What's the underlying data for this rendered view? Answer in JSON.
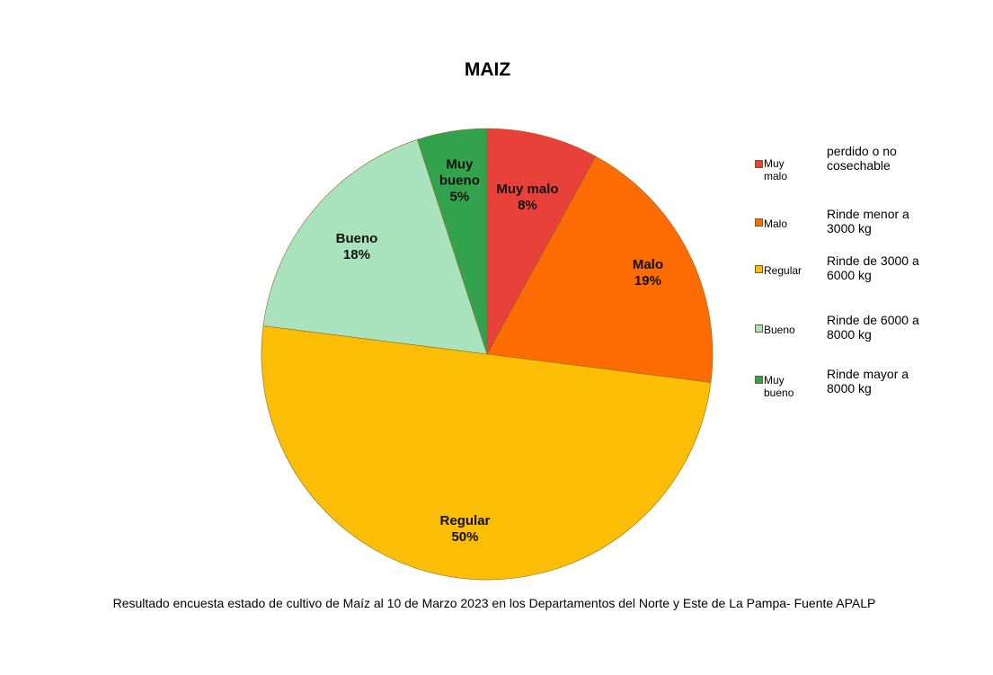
{
  "chart_data": {
    "type": "pie",
    "title": "MAIZ",
    "slices": [
      {
        "label": "Muy malo",
        "value": 8,
        "value_label": "8%",
        "color": "#e8413a"
      },
      {
        "label": "Malo",
        "value": 19,
        "value_label": "19%",
        "color": "#fd6b03"
      },
      {
        "label": "Regular",
        "value": 50,
        "value_label": "50%",
        "color": "#fbbe04"
      },
      {
        "label": "Bueno",
        "value": 18,
        "value_label": "18%",
        "color": "#a9e3be"
      },
      {
        "label": "Muy bueno",
        "value": 5,
        "value_label": "5%",
        "color": "#33a24d"
      }
    ],
    "legend": {
      "placement": "right",
      "items": [
        {
          "name": "Muy malo",
          "description": "perdido o no cosechable",
          "color": "#e8413a"
        },
        {
          "name": "Malo",
          "description": "Rinde menor a 3000 kg",
          "color": "#fd6b03"
        },
        {
          "name": "Regular",
          "description": "Rinde de 3000 a 6000 kg",
          "color": "#fbbe04"
        },
        {
          "name": "Bueno",
          "description": "Rinde de 6000 a 8000 kg",
          "color": "#a9e3be"
        },
        {
          "name": "Muy bueno",
          "description": "Rinde mayor a 8000 kg",
          "color": "#33a24d"
        }
      ]
    }
  },
  "footnote": "Resultado encuesta estado de cultivo de Maíz  al 10 de Marzo 2023  en los Departamentos del Norte y  Este de La Pampa- Fuente APALP"
}
